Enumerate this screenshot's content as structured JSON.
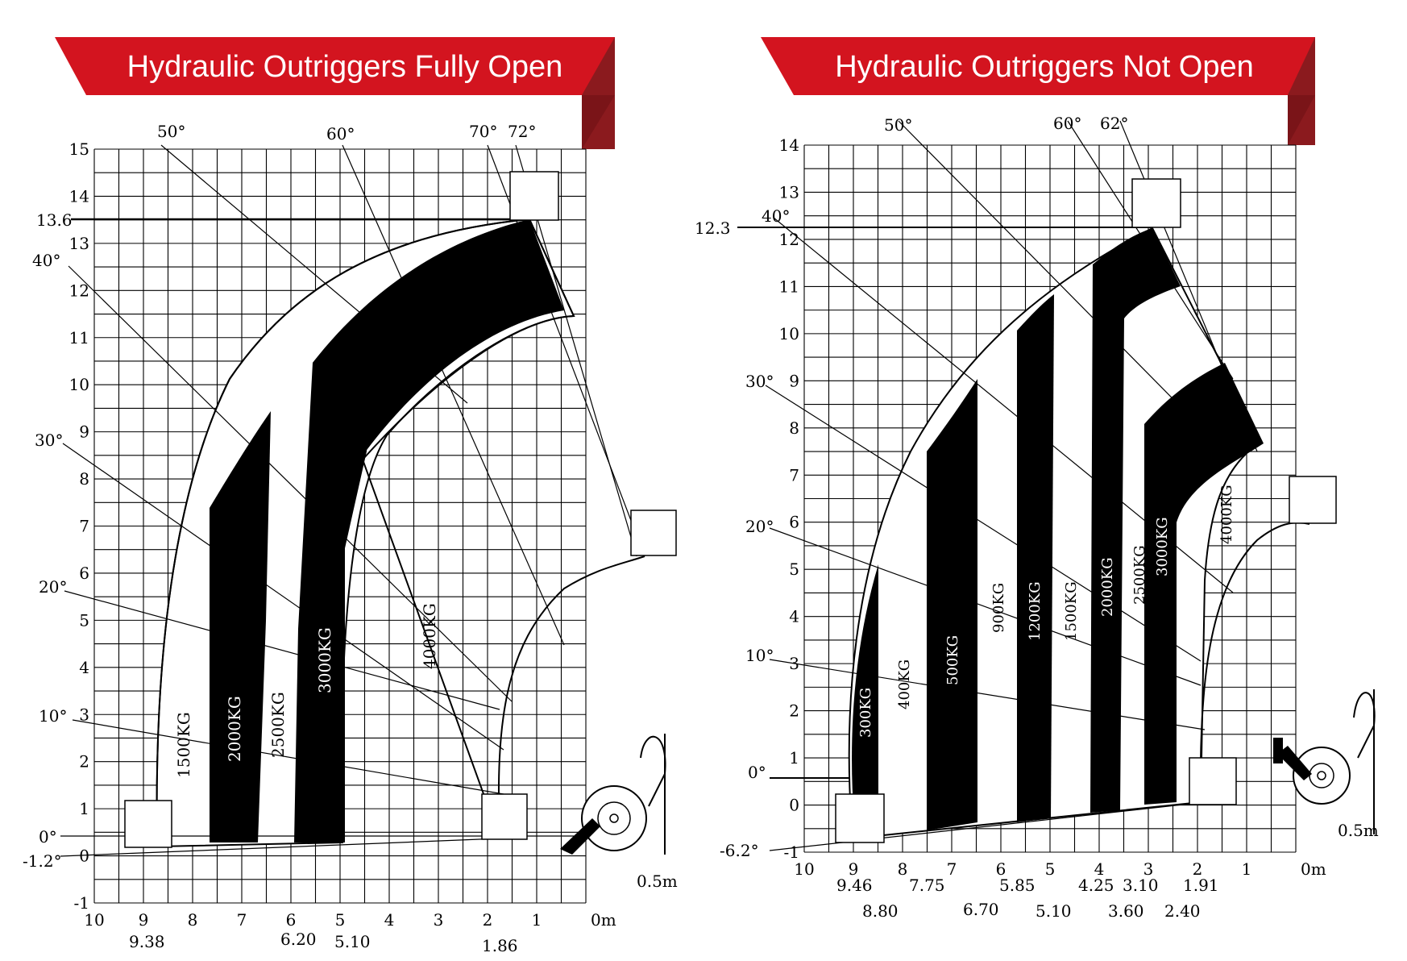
{
  "colors": {
    "banner": "#d3141f",
    "banner_shadow": "#8b1a1e",
    "line": "#000000",
    "band": "#000000",
    "background": "#ffffff"
  },
  "left": {
    "title": "Hydraulic Outriggers Fully Open",
    "y_ticks": [
      "15",
      "14",
      "13",
      "12",
      "11",
      "10",
      "9",
      "8",
      "7",
      "6",
      "5",
      "4",
      "3",
      "2",
      "1",
      "0",
      "-1"
    ],
    "x_ticks": [
      "10",
      "9",
      "8",
      "7",
      "6",
      "5",
      "4",
      "3",
      "2",
      "1",
      "0m"
    ],
    "angles": [
      "50°",
      "60°",
      "70°",
      "72°",
      "40°",
      "30°",
      "20°",
      "10°",
      "0°",
      "-1.2°"
    ],
    "max_height": "13.6",
    "scale": "0.5m",
    "bottom_values": [
      "9.38",
      "6.20",
      "5.10",
      "1.86"
    ],
    "loads": [
      "1500KG",
      "2000KG",
      "2500KG",
      "3000KG",
      "4000KG"
    ]
  },
  "right": {
    "title": "Hydraulic Outriggers Not Open",
    "y_ticks": [
      "14",
      "13",
      "12",
      "11",
      "10",
      "9",
      "8",
      "7",
      "6",
      "5",
      "4",
      "3",
      "2",
      "1",
      "0",
      "-1"
    ],
    "x_ticks": [
      "10",
      "9",
      "8",
      "7",
      "6",
      "5",
      "4",
      "3",
      "2",
      "1",
      "0m"
    ],
    "angles": [
      "50°",
      "60°",
      "62°",
      "40°",
      "30°",
      "20°",
      "10°",
      "0°",
      "-6.2°"
    ],
    "max_height": "12.3",
    "scale": "0.5m",
    "bottom_values_upper": [
      "9.46",
      "7.75",
      "5.85",
      "4.25",
      "3.10",
      "1.91"
    ],
    "bottom_values_lower": [
      "8.80",
      "6.70",
      "5.10",
      "3.60",
      "2.40"
    ],
    "loads": [
      "300KG",
      "400KG",
      "500KG",
      "900KG",
      "1200KG",
      "1500KG",
      "2000KG",
      "2500KG",
      "3000KG",
      "4000KG"
    ]
  }
}
